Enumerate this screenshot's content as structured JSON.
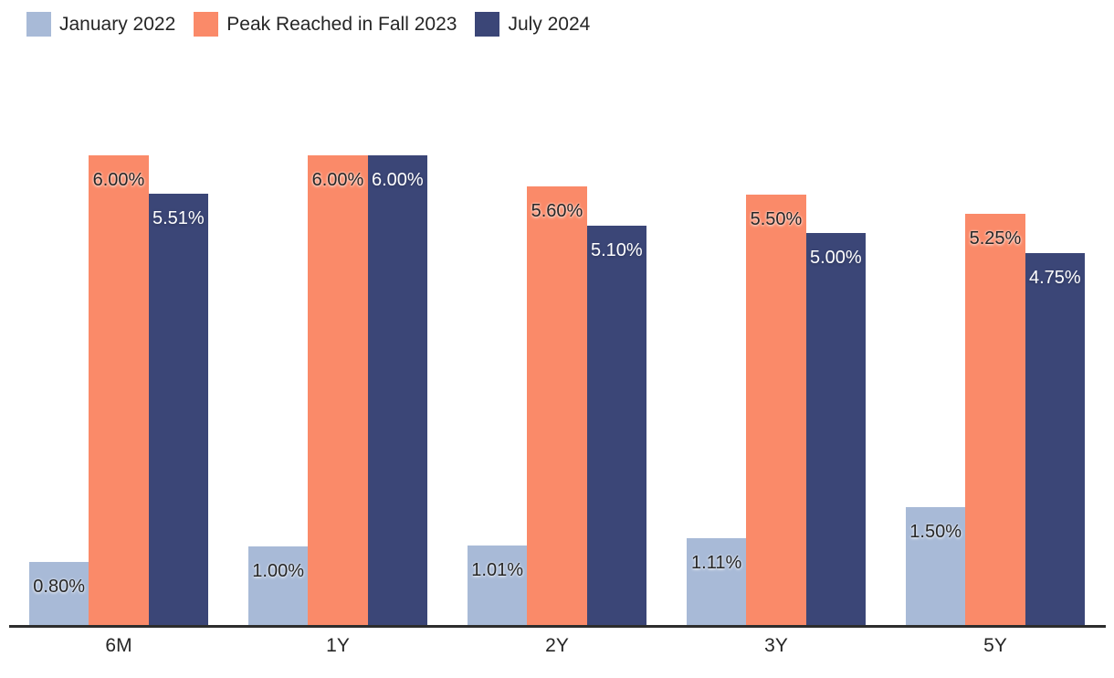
{
  "chart_data": {
    "type": "bar",
    "title": "",
    "xlabel": "",
    "ylabel": "",
    "value_format": "percent",
    "grid": false,
    "legend_position": "top-left",
    "ylim": [
      0,
      7
    ],
    "categories": [
      "6M",
      "1Y",
      "2Y",
      "3Y",
      "5Y"
    ],
    "series": [
      {
        "name": "January 2022",
        "color": "#a8bad7",
        "label_color": "#262626",
        "values": [
          0.8,
          1.0,
          1.01,
          1.11,
          1.5
        ],
        "labels": [
          "0.80%",
          "1.00%",
          "1.01%",
          "1.11%",
          "1.50%"
        ]
      },
      {
        "name": "Peak Reached in Fall 2023",
        "color": "#fa8a69",
        "label_color": "#262626",
        "values": [
          6.0,
          6.0,
          5.6,
          5.5,
          5.25
        ],
        "labels": [
          "6.00%",
          "6.00%",
          "5.60%",
          "5.50%",
          "5.25%"
        ]
      },
      {
        "name": "July 2024",
        "color": "#3b4677",
        "label_color": "#ffffff",
        "values": [
          5.51,
          6.0,
          5.1,
          5.0,
          4.75
        ],
        "labels": [
          "5.51%",
          "6.00%",
          "5.10%",
          "5.00%",
          "4.75%"
        ]
      }
    ],
    "colors": {
      "background": "#ffffff",
      "axis_line": "#2d2d2d",
      "text": "#262626"
    }
  }
}
